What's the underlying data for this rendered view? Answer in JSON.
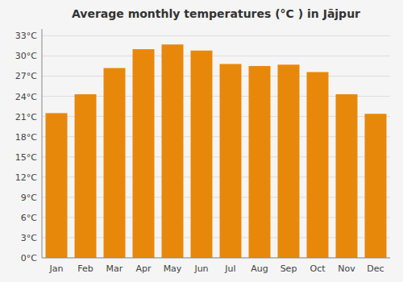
{
  "chart_data": {
    "type": "bar",
    "title": "Average monthly temperatures (°C ) in Jājpur",
    "categories": [
      "Jan",
      "Feb",
      "Mar",
      "Apr",
      "May",
      "Jun",
      "Jul",
      "Aug",
      "Sep",
      "Oct",
      "Nov",
      "Dec"
    ],
    "values": [
      21.5,
      24.3,
      28.2,
      31.0,
      31.7,
      30.8,
      28.8,
      28.5,
      28.7,
      27.6,
      24.3,
      21.4
    ],
    "color": "#E8880A",
    "ylim": [
      0,
      34
    ],
    "yticks": [
      {
        "value": 0,
        "label": "0°C"
      },
      {
        "value": 3,
        "label": "3°C"
      },
      {
        "value": 6,
        "label": "6°C"
      },
      {
        "value": 9,
        "label": "9°C"
      },
      {
        "value": 12,
        "label": "12°C"
      },
      {
        "value": 15,
        "label": "15°C"
      },
      {
        "value": 18,
        "label": "18°C"
      },
      {
        "value": 21,
        "label": "21°C"
      },
      {
        "value": 24,
        "label": "24°C"
      },
      {
        "value": 27,
        "label": "27°C"
      },
      {
        "value": 30,
        "label": "30°C"
      },
      {
        "value": 33,
        "label": "33°C"
      }
    ],
    "grid": true
  }
}
